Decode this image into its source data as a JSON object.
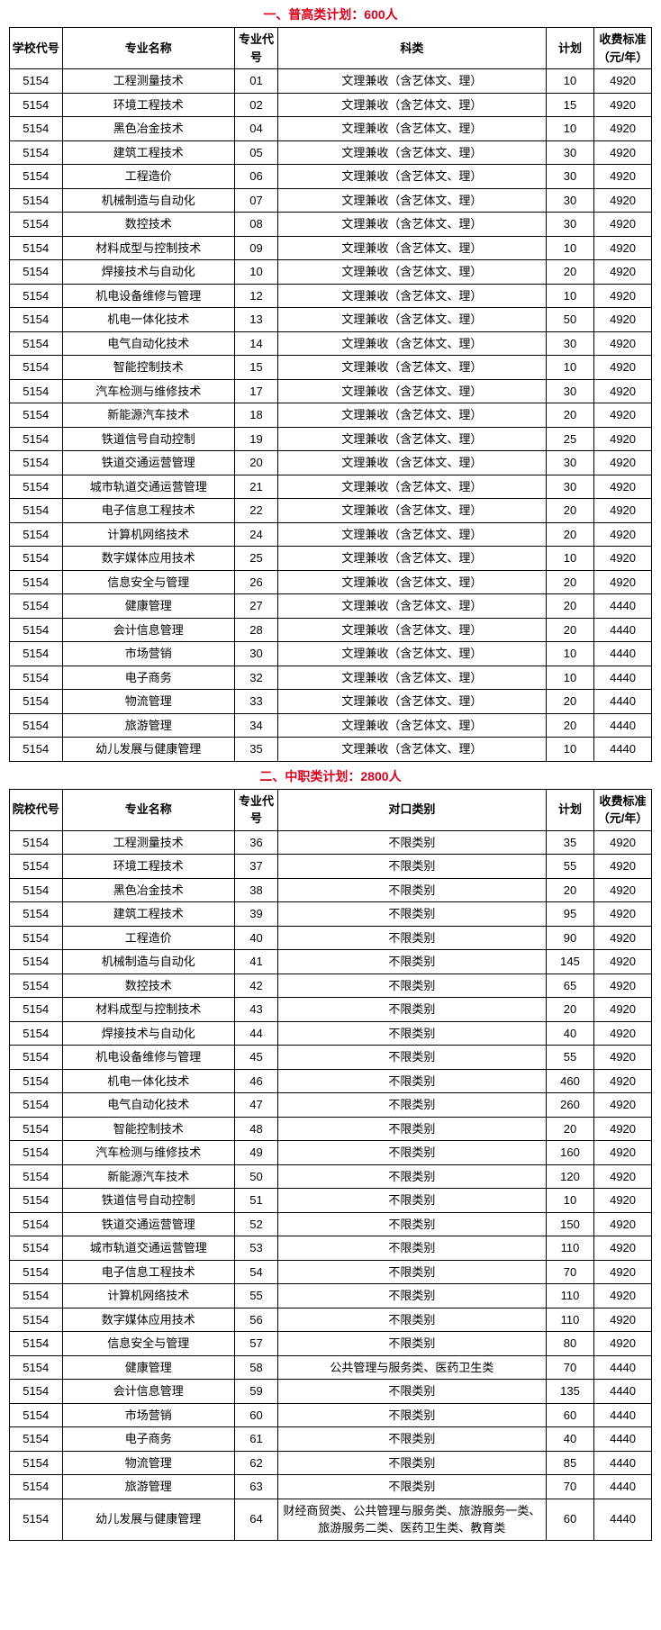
{
  "section1": {
    "title": "一、普高类计划：600人",
    "headers": {
      "school_code": "学校代号",
      "major_name": "专业名称",
      "major_code": "专业代号",
      "category": "科类",
      "plan": "计划",
      "fee": "收费标准（元/年）"
    },
    "rows": [
      {
        "code": "5154",
        "major": "工程测量技术",
        "mcode": "01",
        "cat": "文理兼收（含艺体文、理）",
        "plan": "10",
        "fee": "4920"
      },
      {
        "code": "5154",
        "major": "环境工程技术",
        "mcode": "02",
        "cat": "文理兼收（含艺体文、理）",
        "plan": "15",
        "fee": "4920"
      },
      {
        "code": "5154",
        "major": "黑色冶金技术",
        "mcode": "04",
        "cat": "文理兼收（含艺体文、理）",
        "plan": "10",
        "fee": "4920"
      },
      {
        "code": "5154",
        "major": "建筑工程技术",
        "mcode": "05",
        "cat": "文理兼收（含艺体文、理）",
        "plan": "30",
        "fee": "4920"
      },
      {
        "code": "5154",
        "major": "工程造价",
        "mcode": "06",
        "cat": "文理兼收（含艺体文、理）",
        "plan": "30",
        "fee": "4920"
      },
      {
        "code": "5154",
        "major": "机械制造与自动化",
        "mcode": "07",
        "cat": "文理兼收（含艺体文、理）",
        "plan": "30",
        "fee": "4920"
      },
      {
        "code": "5154",
        "major": "数控技术",
        "mcode": "08",
        "cat": "文理兼收（含艺体文、理）",
        "plan": "30",
        "fee": "4920"
      },
      {
        "code": "5154",
        "major": "材料成型与控制技术",
        "mcode": "09",
        "cat": "文理兼收（含艺体文、理）",
        "plan": "10",
        "fee": "4920"
      },
      {
        "code": "5154",
        "major": "焊接技术与自动化",
        "mcode": "10",
        "cat": "文理兼收（含艺体文、理）",
        "plan": "20",
        "fee": "4920"
      },
      {
        "code": "5154",
        "major": "机电设备维修与管理",
        "mcode": "12",
        "cat": "文理兼收（含艺体文、理）",
        "plan": "10",
        "fee": "4920"
      },
      {
        "code": "5154",
        "major": "机电一体化技术",
        "mcode": "13",
        "cat": "文理兼收（含艺体文、理）",
        "plan": "50",
        "fee": "4920"
      },
      {
        "code": "5154",
        "major": "电气自动化技术",
        "mcode": "14",
        "cat": "文理兼收（含艺体文、理）",
        "plan": "30",
        "fee": "4920"
      },
      {
        "code": "5154",
        "major": "智能控制技术",
        "mcode": "15",
        "cat": "文理兼收（含艺体文、理）",
        "plan": "10",
        "fee": "4920"
      },
      {
        "code": "5154",
        "major": "汽车检测与维修技术",
        "mcode": "17",
        "cat": "文理兼收（含艺体文、理）",
        "plan": "30",
        "fee": "4920"
      },
      {
        "code": "5154",
        "major": "新能源汽车技术",
        "mcode": "18",
        "cat": "文理兼收（含艺体文、理）",
        "plan": "20",
        "fee": "4920"
      },
      {
        "code": "5154",
        "major": "铁道信号自动控制",
        "mcode": "19",
        "cat": "文理兼收（含艺体文、理）",
        "plan": "25",
        "fee": "4920"
      },
      {
        "code": "5154",
        "major": "铁道交通运营管理",
        "mcode": "20",
        "cat": "文理兼收（含艺体文、理）",
        "plan": "30",
        "fee": "4920"
      },
      {
        "code": "5154",
        "major": "城市轨道交通运营管理",
        "mcode": "21",
        "cat": "文理兼收（含艺体文、理）",
        "plan": "30",
        "fee": "4920"
      },
      {
        "code": "5154",
        "major": "电子信息工程技术",
        "mcode": "22",
        "cat": "文理兼收（含艺体文、理）",
        "plan": "20",
        "fee": "4920"
      },
      {
        "code": "5154",
        "major": "计算机网络技术",
        "mcode": "24",
        "cat": "文理兼收（含艺体文、理）",
        "plan": "20",
        "fee": "4920"
      },
      {
        "code": "5154",
        "major": "数字媒体应用技术",
        "mcode": "25",
        "cat": "文理兼收（含艺体文、理）",
        "plan": "10",
        "fee": "4920"
      },
      {
        "code": "5154",
        "major": "信息安全与管理",
        "mcode": "26",
        "cat": "文理兼收（含艺体文、理）",
        "plan": "20",
        "fee": "4920"
      },
      {
        "code": "5154",
        "major": "健康管理",
        "mcode": "27",
        "cat": "文理兼收（含艺体文、理）",
        "plan": "20",
        "fee": "4440"
      },
      {
        "code": "5154",
        "major": "会计信息管理",
        "mcode": "28",
        "cat": "文理兼收（含艺体文、理）",
        "plan": "20",
        "fee": "4440"
      },
      {
        "code": "5154",
        "major": "市场营销",
        "mcode": "30",
        "cat": "文理兼收（含艺体文、理）",
        "plan": "10",
        "fee": "4440"
      },
      {
        "code": "5154",
        "major": "电子商务",
        "mcode": "32",
        "cat": "文理兼收（含艺体文、理）",
        "plan": "10",
        "fee": "4440"
      },
      {
        "code": "5154",
        "major": "物流管理",
        "mcode": "33",
        "cat": "文理兼收（含艺体文、理）",
        "plan": "20",
        "fee": "4440"
      },
      {
        "code": "5154",
        "major": "旅游管理",
        "mcode": "34",
        "cat": "文理兼收（含艺体文、理）",
        "plan": "20",
        "fee": "4440"
      },
      {
        "code": "5154",
        "major": "幼儿发展与健康管理",
        "mcode": "35",
        "cat": "文理兼收（含艺体文、理）",
        "plan": "10",
        "fee": "4440"
      }
    ]
  },
  "section2": {
    "title": "二、中职类计划：2800人",
    "headers": {
      "school_code": "院校代号",
      "major_name": "专业名称",
      "major_code": "专业代号",
      "category": "对口类别",
      "plan": "计划",
      "fee": "收费标准（元/年）"
    },
    "rows": [
      {
        "code": "5154",
        "major": "工程测量技术",
        "mcode": "36",
        "cat": "不限类别",
        "plan": "35",
        "fee": "4920"
      },
      {
        "code": "5154",
        "major": "环境工程技术",
        "mcode": "37",
        "cat": "不限类别",
        "plan": "55",
        "fee": "4920"
      },
      {
        "code": "5154",
        "major": "黑色冶金技术",
        "mcode": "38",
        "cat": "不限类别",
        "plan": "20",
        "fee": "4920"
      },
      {
        "code": "5154",
        "major": "建筑工程技术",
        "mcode": "39",
        "cat": "不限类别",
        "plan": "95",
        "fee": "4920"
      },
      {
        "code": "5154",
        "major": "工程造价",
        "mcode": "40",
        "cat": "不限类别",
        "plan": "90",
        "fee": "4920"
      },
      {
        "code": "5154",
        "major": "机械制造与自动化",
        "mcode": "41",
        "cat": "不限类别",
        "plan": "145",
        "fee": "4920"
      },
      {
        "code": "5154",
        "major": "数控技术",
        "mcode": "42",
        "cat": "不限类别",
        "plan": "65",
        "fee": "4920"
      },
      {
        "code": "5154",
        "major": "材料成型与控制技术",
        "mcode": "43",
        "cat": "不限类别",
        "plan": "20",
        "fee": "4920"
      },
      {
        "code": "5154",
        "major": "焊接技术与自动化",
        "mcode": "44",
        "cat": "不限类别",
        "plan": "40",
        "fee": "4920"
      },
      {
        "code": "5154",
        "major": "机电设备维修与管理",
        "mcode": "45",
        "cat": "不限类别",
        "plan": "55",
        "fee": "4920"
      },
      {
        "code": "5154",
        "major": "机电一体化技术",
        "mcode": "46",
        "cat": "不限类别",
        "plan": "460",
        "fee": "4920"
      },
      {
        "code": "5154",
        "major": "电气自动化技术",
        "mcode": "47",
        "cat": "不限类别",
        "plan": "260",
        "fee": "4920"
      },
      {
        "code": "5154",
        "major": "智能控制技术",
        "mcode": "48",
        "cat": "不限类别",
        "plan": "20",
        "fee": "4920"
      },
      {
        "code": "5154",
        "major": "汽车检测与维修技术",
        "mcode": "49",
        "cat": "不限类别",
        "plan": "160",
        "fee": "4920"
      },
      {
        "code": "5154",
        "major": "新能源汽车技术",
        "mcode": "50",
        "cat": "不限类别",
        "plan": "120",
        "fee": "4920"
      },
      {
        "code": "5154",
        "major": "铁道信号自动控制",
        "mcode": "51",
        "cat": "不限类别",
        "plan": "10",
        "fee": "4920"
      },
      {
        "code": "5154",
        "major": "铁道交通运营管理",
        "mcode": "52",
        "cat": "不限类别",
        "plan": "150",
        "fee": "4920"
      },
      {
        "code": "5154",
        "major": "城市轨道交通运营管理",
        "mcode": "53",
        "cat": "不限类别",
        "plan": "110",
        "fee": "4920"
      },
      {
        "code": "5154",
        "major": "电子信息工程技术",
        "mcode": "54",
        "cat": "不限类别",
        "plan": "70",
        "fee": "4920"
      },
      {
        "code": "5154",
        "major": "计算机网络技术",
        "mcode": "55",
        "cat": "不限类别",
        "plan": "110",
        "fee": "4920"
      },
      {
        "code": "5154",
        "major": "数字媒体应用技术",
        "mcode": "56",
        "cat": "不限类别",
        "plan": "110",
        "fee": "4920"
      },
      {
        "code": "5154",
        "major": "信息安全与管理",
        "mcode": "57",
        "cat": "不限类别",
        "plan": "80",
        "fee": "4920"
      },
      {
        "code": "5154",
        "major": "健康管理",
        "mcode": "58",
        "cat": "公共管理与服务类、医药卫生类",
        "plan": "70",
        "fee": "4440"
      },
      {
        "code": "5154",
        "major": "会计信息管理",
        "mcode": "59",
        "cat": "不限类别",
        "plan": "135",
        "fee": "4440"
      },
      {
        "code": "5154",
        "major": "市场营销",
        "mcode": "60",
        "cat": "不限类别",
        "plan": "60",
        "fee": "4440"
      },
      {
        "code": "5154",
        "major": "电子商务",
        "mcode": "61",
        "cat": "不限类别",
        "plan": "40",
        "fee": "4440"
      },
      {
        "code": "5154",
        "major": "物流管理",
        "mcode": "62",
        "cat": "不限类别",
        "plan": "85",
        "fee": "4440"
      },
      {
        "code": "5154",
        "major": "旅游管理",
        "mcode": "63",
        "cat": "不限类别",
        "plan": "70",
        "fee": "4440"
      },
      {
        "code": "5154",
        "major": "幼儿发展与健康管理",
        "mcode": "64",
        "cat": "财经商贸类、公共管理与服务类、旅游服务一类、旅游服务二类、医药卫生类、教育类",
        "plan": "60",
        "fee": "4440"
      }
    ]
  }
}
